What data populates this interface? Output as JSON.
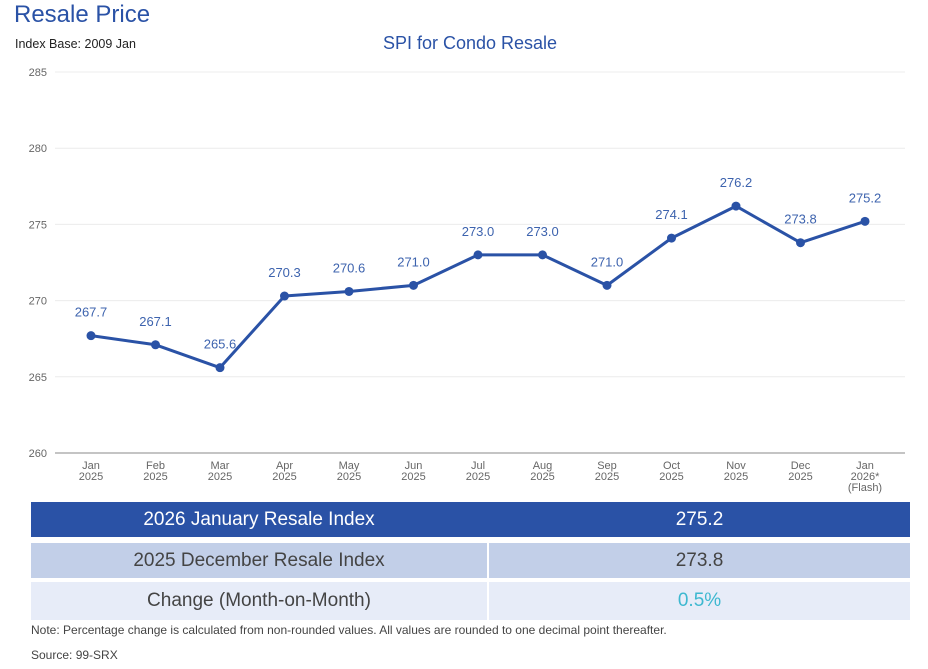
{
  "header": {
    "title": "Resale Price",
    "index_base": "Index Base: 2009 Jan"
  },
  "chart_data": {
    "type": "line",
    "title": "SPI for Condo Resale",
    "xlabel": "",
    "ylabel": "",
    "ylim": [
      260,
      285
    ],
    "yticks": [
      260,
      265,
      270,
      275,
      280,
      285
    ],
    "grid": true,
    "categories": [
      [
        "Jan",
        "2025"
      ],
      [
        "Feb",
        "2025"
      ],
      [
        "Mar",
        "2025"
      ],
      [
        "Apr",
        "2025"
      ],
      [
        "May",
        "2025"
      ],
      [
        "Jun",
        "2025"
      ],
      [
        "Jul",
        "2025"
      ],
      [
        "Aug",
        "2025"
      ],
      [
        "Sep",
        "2025"
      ],
      [
        "Oct",
        "2025"
      ],
      [
        "Nov",
        "2025"
      ],
      [
        "Dec",
        "2025"
      ],
      [
        "Jan",
        "2026*",
        "(Flash)"
      ]
    ],
    "series": [
      {
        "name": "SPI for Condo Resale",
        "color": "#2a52a6",
        "values": [
          267.7,
          267.1,
          265.6,
          270.3,
          270.6,
          271.0,
          273.0,
          273.0,
          271.0,
          274.1,
          276.2,
          273.8,
          275.2
        ],
        "labels": [
          "267.7",
          "267.1",
          "265.6",
          "270.3",
          "270.6",
          "271.0",
          "273.0",
          "273.0",
          "271.0",
          "274.1",
          "276.2",
          "273.8",
          "275.2"
        ]
      }
    ]
  },
  "summary_table": {
    "rows": [
      {
        "label": "2026 January Resale Index",
        "value": "275.2"
      },
      {
        "label": "2025 December Resale Index",
        "value": "273.8"
      },
      {
        "label": "Change (Month-on-Month)",
        "value": "0.5%"
      }
    ]
  },
  "footer": {
    "note": "Note: Percentage change is calculated from non-rounded values.  All values are rounded to one decimal point thereafter.",
    "source": "Source: 99-SRX"
  },
  "colors": {
    "accent": "#2a52a6",
    "change_value": "#3db8d0",
    "row2_bg": "#c2cfe8",
    "row3_bg": "#e7ecf8"
  }
}
